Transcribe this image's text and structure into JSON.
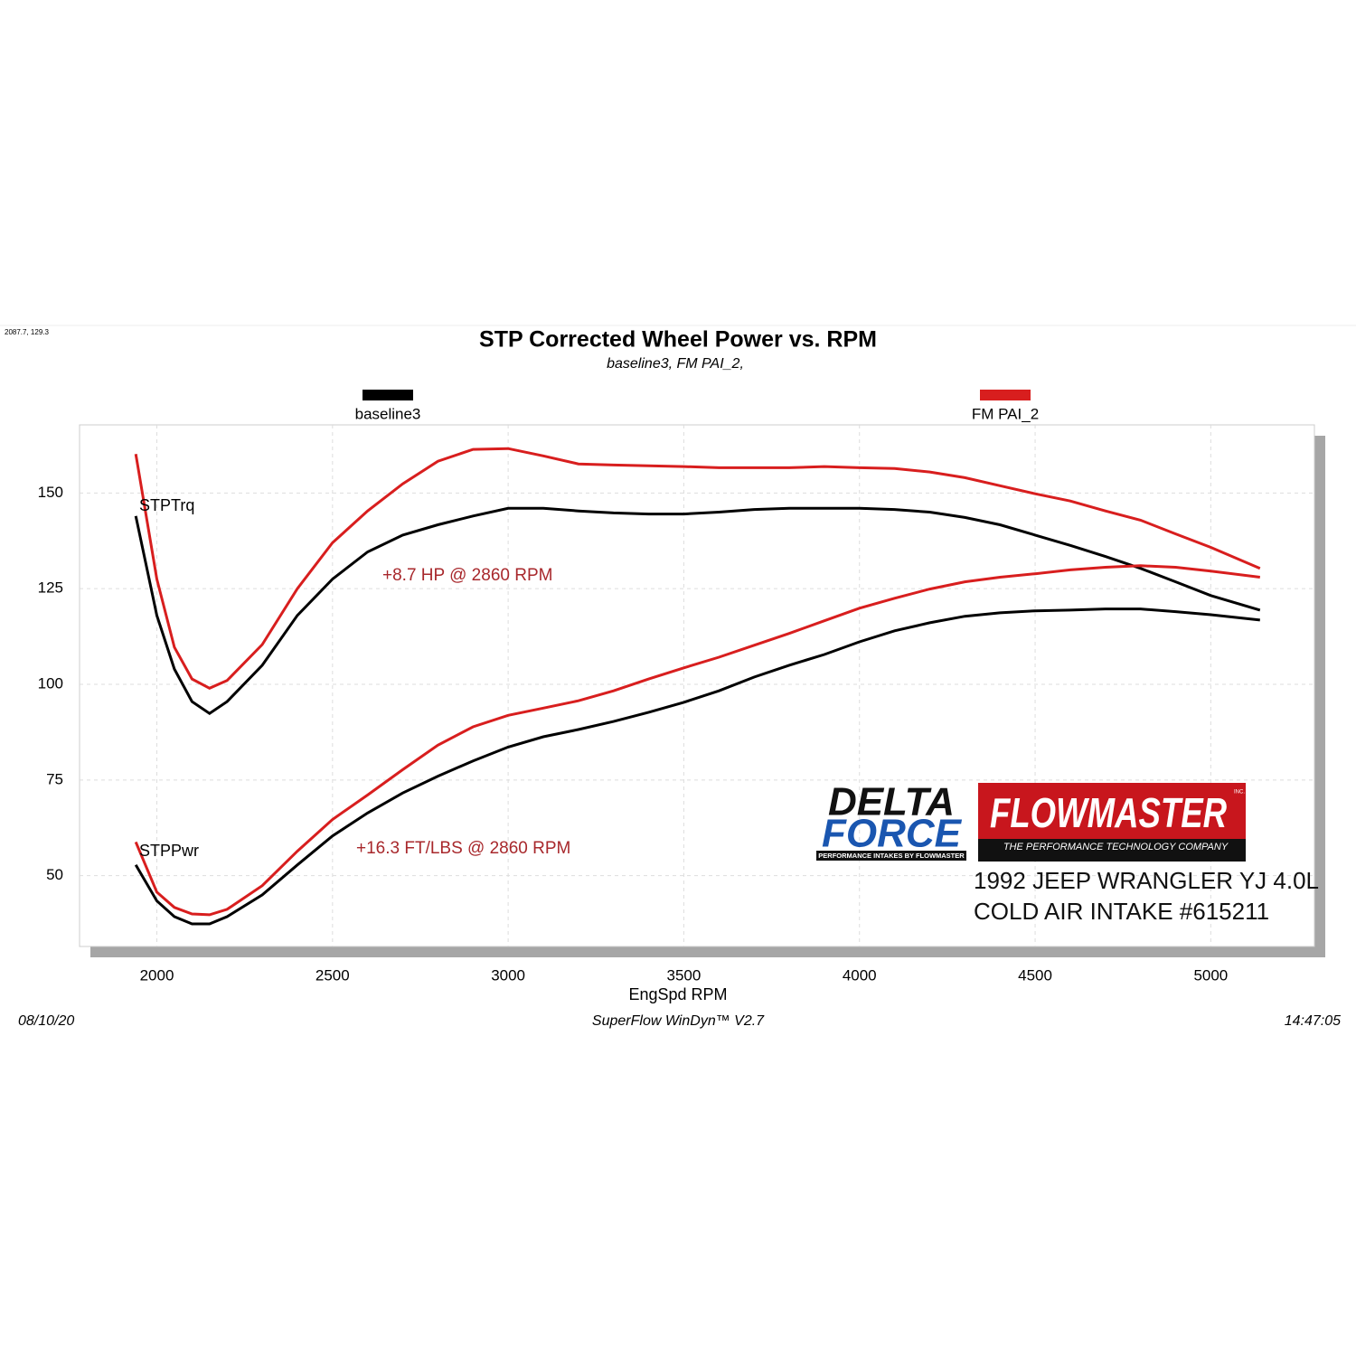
{
  "corner_note": "2087.7, 129.3",
  "chart_data": {
    "type": "line",
    "title": "STP Corrected Wheel Power vs. RPM",
    "subtitle": "baseline3, FM PAI_2,",
    "x_label": "EngSpd  RPM",
    "x": [
      1940,
      2000,
      2050,
      2100,
      2150,
      2200,
      2300,
      2400,
      2500,
      2600,
      2700,
      2800,
      2900,
      3000,
      3100,
      3200,
      3300,
      3400,
      3500,
      3600,
      3700,
      3800,
      3900,
      4000,
      4100,
      4200,
      4300,
      4400,
      4500,
      4600,
      4700,
      4800,
      4900,
      5000,
      5140
    ],
    "series": [
      {
        "name": "baseline3",
        "color": "#000000",
        "torque": [
          144,
          118,
          104,
          95.5,
          92.4,
          95.5,
          105,
          118,
          127.5,
          134.6,
          139,
          141.7,
          144,
          146,
          146,
          145.3,
          144.8,
          144.5,
          144.5,
          145,
          145.7,
          146,
          146,
          146,
          145.7,
          145,
          143.6,
          141.7,
          139,
          136.3,
          133.4,
          130.3,
          126.8,
          123.2,
          119.4
        ],
        "power": [
          52.8,
          43.4,
          39.3,
          37.4,
          37.4,
          39.3,
          45,
          52.8,
          60.4,
          66.4,
          71.6,
          76,
          80,
          83.6,
          86.3,
          88.2,
          90.3,
          92.7,
          95.3,
          98.3,
          101.9,
          105,
          107.8,
          111.1,
          114,
          116.1,
          117.8,
          118.7,
          119.2,
          119.4,
          119.7,
          119.7,
          119,
          118.2,
          116.8
        ]
      },
      {
        "name": "FM PAI_2",
        "color": "#d81e1e",
        "torque": [
          160.2,
          127.5,
          109.7,
          101.4,
          99,
          101,
          110.4,
          125,
          137,
          145.3,
          152.4,
          158.3,
          161.4,
          161.6,
          159.7,
          157.6,
          157.3,
          157.1,
          156.9,
          156.6,
          156.6,
          156.6,
          156.9,
          156.6,
          156.4,
          155.5,
          154,
          151.9,
          149.8,
          147.9,
          145.3,
          142.9,
          139.3,
          135.8,
          130.3
        ],
        "power": [
          58.8,
          45.7,
          41.7,
          40,
          39.8,
          41.2,
          47.4,
          56.4,
          64.7,
          71.1,
          77.7,
          84.1,
          88.9,
          91.9,
          93.8,
          95.7,
          98.3,
          101.4,
          104.3,
          107.1,
          110.2,
          113.3,
          116.6,
          119.9,
          122.5,
          124.9,
          126.8,
          128,
          128.9,
          129.9,
          130.6,
          131,
          130.6,
          129.6,
          128
        ]
      }
    ],
    "curve_labels": [
      "STPTrq",
      "STPPwr"
    ],
    "annotations": [
      "+8.7 HP @ 2860 RPM",
      "+16.3 FT/LBS @ 2860 RPM"
    ],
    "xlim": [
      1780,
      5295
    ],
    "ylim": [
      31.5,
      167.8
    ],
    "xticks": [
      2000,
      2500,
      3000,
      3500,
      4000,
      4500,
      5000
    ],
    "yticks": [
      50,
      75,
      100,
      125,
      150
    ],
    "grid": true
  },
  "footer": {
    "date": "08/10/20",
    "software": "SuperFlow WinDyn™ V2.7",
    "time": "14:47:05"
  },
  "logos": {
    "delta": "DELTA",
    "force": "FORCE",
    "delta_tag": "PERFORMANCE INTAKES BY FLOWMASTER",
    "flowmaster": "FLOWMASTER",
    "inc": "INC.",
    "flowmaster_tag": "THE PERFORMANCE TECHNOLOGY COMPANY"
  },
  "product": [
    "1992 JEEP WRANGLER YJ 4.0L",
    "COLD AIR INTAKE #615211"
  ]
}
